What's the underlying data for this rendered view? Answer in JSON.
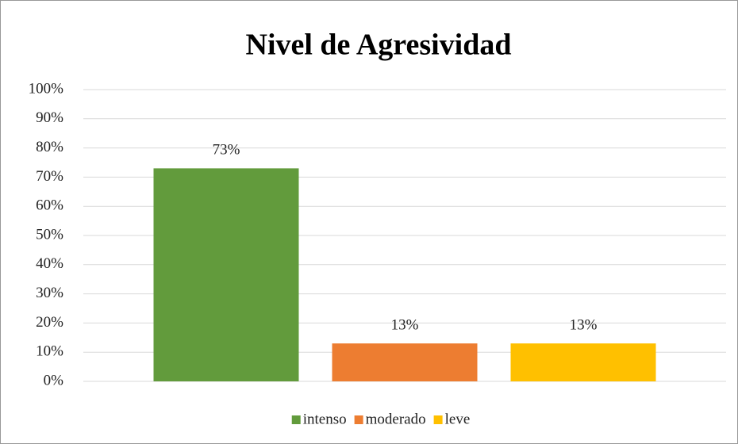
{
  "chart_data": {
    "type": "bar",
    "title": "Nivel de Agresividad",
    "categories": [
      null
    ],
    "series": [
      {
        "name": "intenso",
        "color": "#629b3c",
        "values": [
          73
        ],
        "value_labels": [
          "73%"
        ]
      },
      {
        "name": "moderado",
        "color": "#ed7d31",
        "values": [
          13
        ],
        "value_labels": [
          "13%"
        ]
      },
      {
        "name": "leve",
        "color": "#ffc000",
        "values": [
          13
        ],
        "value_labels": [
          "13%"
        ]
      }
    ],
    "ylim": [
      0,
      100
    ],
    "yticks": [
      {
        "value": 0,
        "label": "0%"
      },
      {
        "value": 10,
        "label": "10%"
      },
      {
        "value": 20,
        "label": "20%"
      },
      {
        "value": 30,
        "label": "30%"
      },
      {
        "value": 40,
        "label": "40%"
      },
      {
        "value": 50,
        "label": "50%"
      },
      {
        "value": 60,
        "label": "60%"
      },
      {
        "value": 70,
        "label": "70%"
      },
      {
        "value": 80,
        "label": "80%"
      },
      {
        "value": 90,
        "label": "90%"
      },
      {
        "value": 100,
        "label": "100%"
      }
    ],
    "grid": true,
    "legend": "bottom"
  }
}
